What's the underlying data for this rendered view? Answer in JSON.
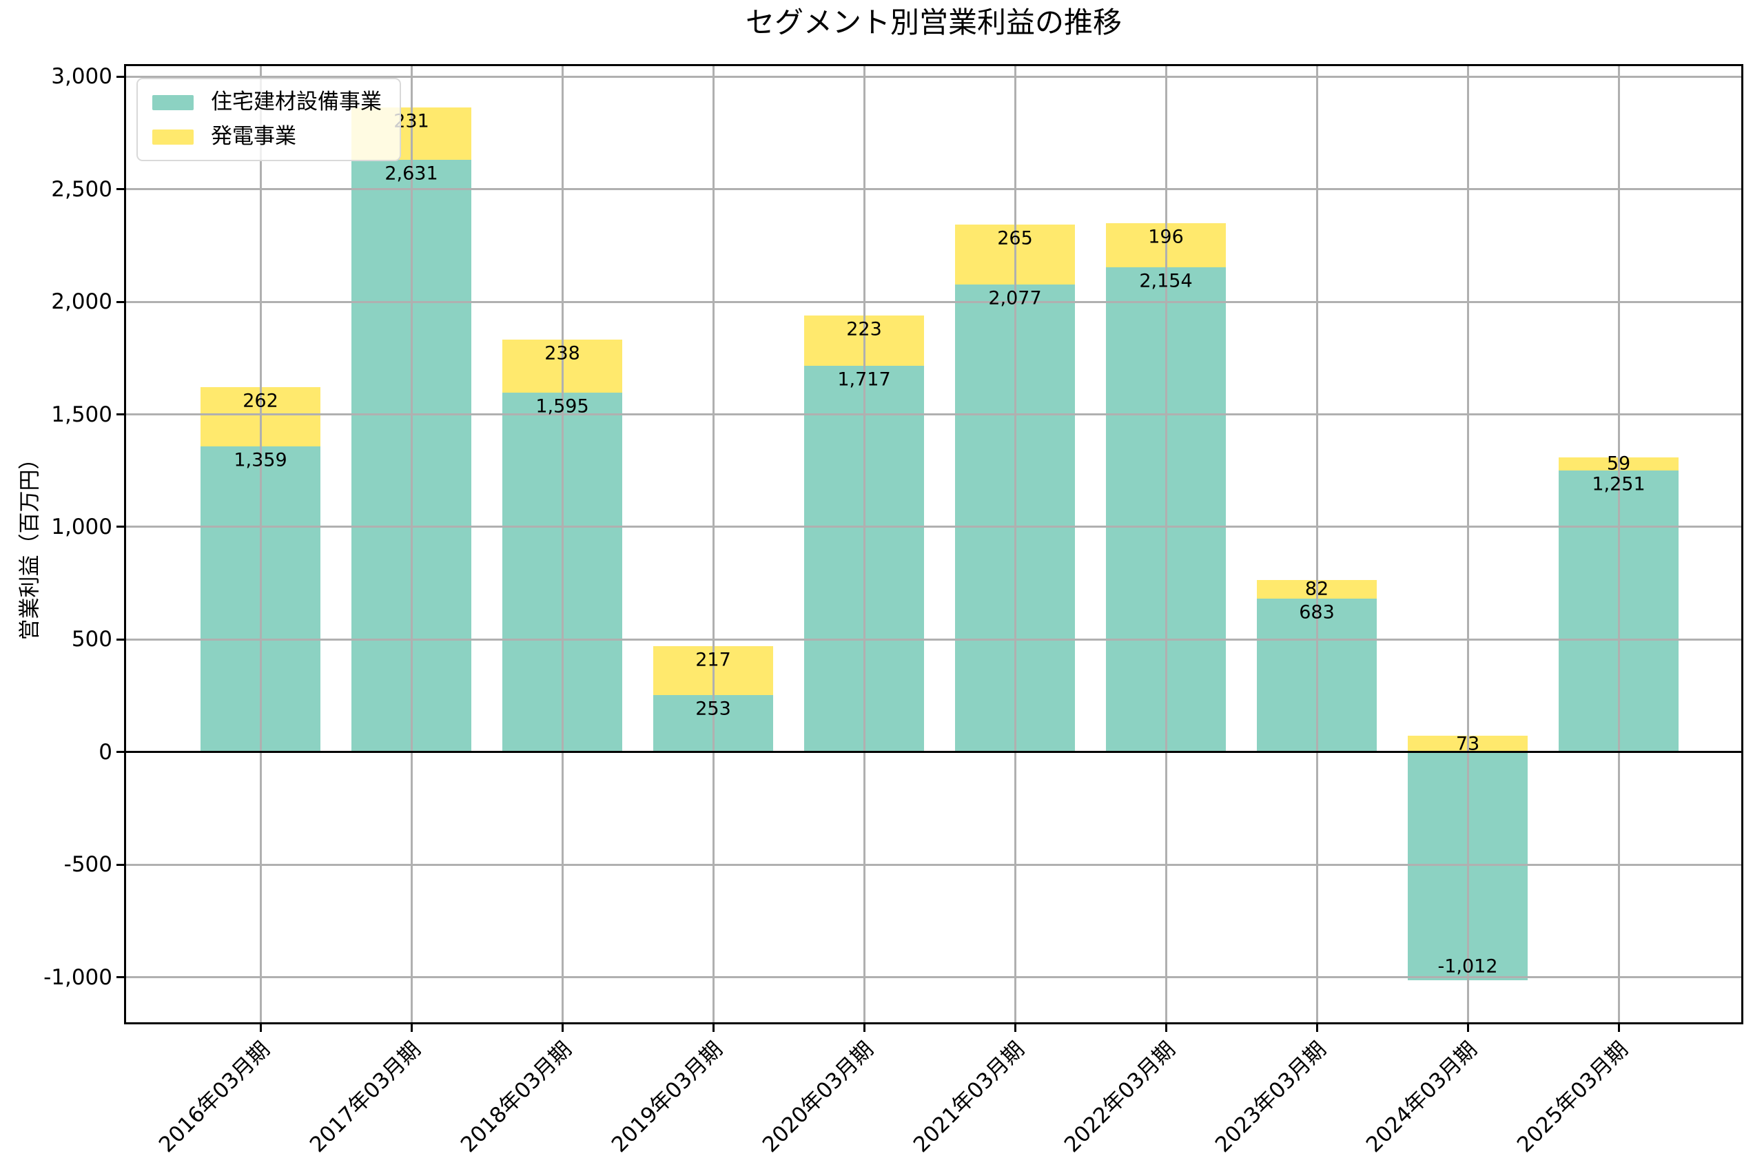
{
  "chart_data": {
    "type": "bar",
    "stacked": true,
    "title": "セグメント別営業利益の推移",
    "xlabel": "",
    "ylabel": "営業利益（百万円）",
    "categories": [
      "2016年03月期",
      "2017年03月期",
      "2018年03月期",
      "2019年03月期",
      "2020年03月期",
      "2021年03月期",
      "2022年03月期",
      "2023年03月期",
      "2024年03月期",
      "2025年03月期"
    ],
    "series": [
      {
        "name": "住宅建材設備事業",
        "color": "#8CD2C2",
        "values": [
          1359,
          2631,
          1595,
          253,
          1717,
          2077,
          2154,
          683,
          -1012,
          1251
        ]
      },
      {
        "name": "発電事業",
        "color": "#FFE96D",
        "values": [
          262,
          231,
          238,
          217,
          223,
          265,
          196,
          82,
          73,
          59
        ]
      }
    ],
    "ylim": [
      -1199,
      3046
    ],
    "yticks": [
      -1000,
      -500,
      0,
      500,
      1000,
      1500,
      2000,
      2500,
      3000
    ],
    "grid": true,
    "grid_color": "#b0b0b0",
    "legend_position": "upper-left",
    "bar_labels_visible": true
  }
}
